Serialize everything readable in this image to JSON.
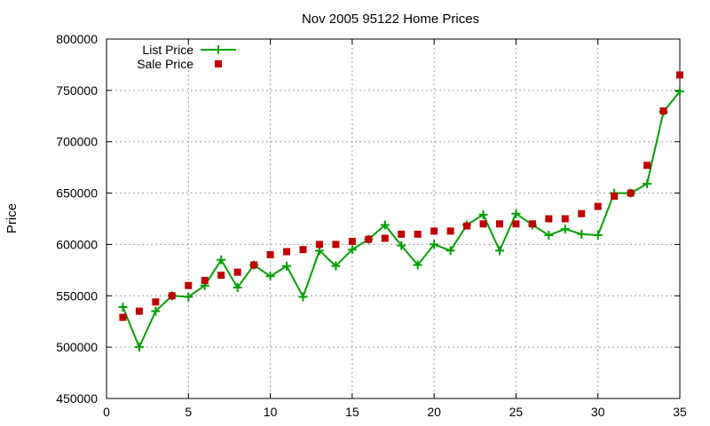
{
  "chart_data": {
    "type": "line",
    "title": "Nov 2005 95122 Home Prices",
    "xlabel": "",
    "ylabel": "Price",
    "xlim": [
      0,
      35
    ],
    "ylim": [
      450000,
      800000
    ],
    "x_ticks": [
      0,
      5,
      10,
      15,
      20,
      25,
      30,
      35
    ],
    "y_ticks": [
      450000,
      500000,
      550000,
      600000,
      650000,
      700000,
      750000,
      800000
    ],
    "grid": true,
    "legend_position": "top-left",
    "x": [
      1,
      2,
      3,
      4,
      5,
      6,
      7,
      8,
      9,
      10,
      11,
      12,
      13,
      14,
      15,
      16,
      17,
      18,
      19,
      20,
      21,
      22,
      23,
      24,
      25,
      26,
      27,
      28,
      29,
      30,
      31,
      32,
      33,
      34,
      35
    ],
    "series": [
      {
        "name": "List Price",
        "style": "linespoints",
        "marker": "plus",
        "color": "#00a000",
        "values": [
          539000,
          500000,
          535000,
          550000,
          549000,
          560000,
          585000,
          558000,
          580000,
          569000,
          579000,
          549000,
          594000,
          579000,
          595000,
          605000,
          619000,
          599000,
          580000,
          600000,
          594000,
          619000,
          629000,
          594000,
          630000,
          619000,
          609000,
          615000,
          610000,
          609000,
          650000,
          650000,
          659000,
          729000,
          749000
        ]
      },
      {
        "name": "Sale Price",
        "style": "points",
        "marker": "square",
        "color": "#c00000",
        "values": [
          529000,
          535000,
          544000,
          550000,
          560000,
          565000,
          570000,
          573000,
          580000,
          590000,
          593000,
          595000,
          600000,
          600000,
          603000,
          605000,
          606000,
          610000,
          610000,
          613000,
          613000,
          618000,
          620000,
          620000,
          620000,
          620000,
          625000,
          625000,
          630000,
          637000,
          647000,
          650000,
          677000,
          730000,
          765000
        ]
      }
    ]
  }
}
